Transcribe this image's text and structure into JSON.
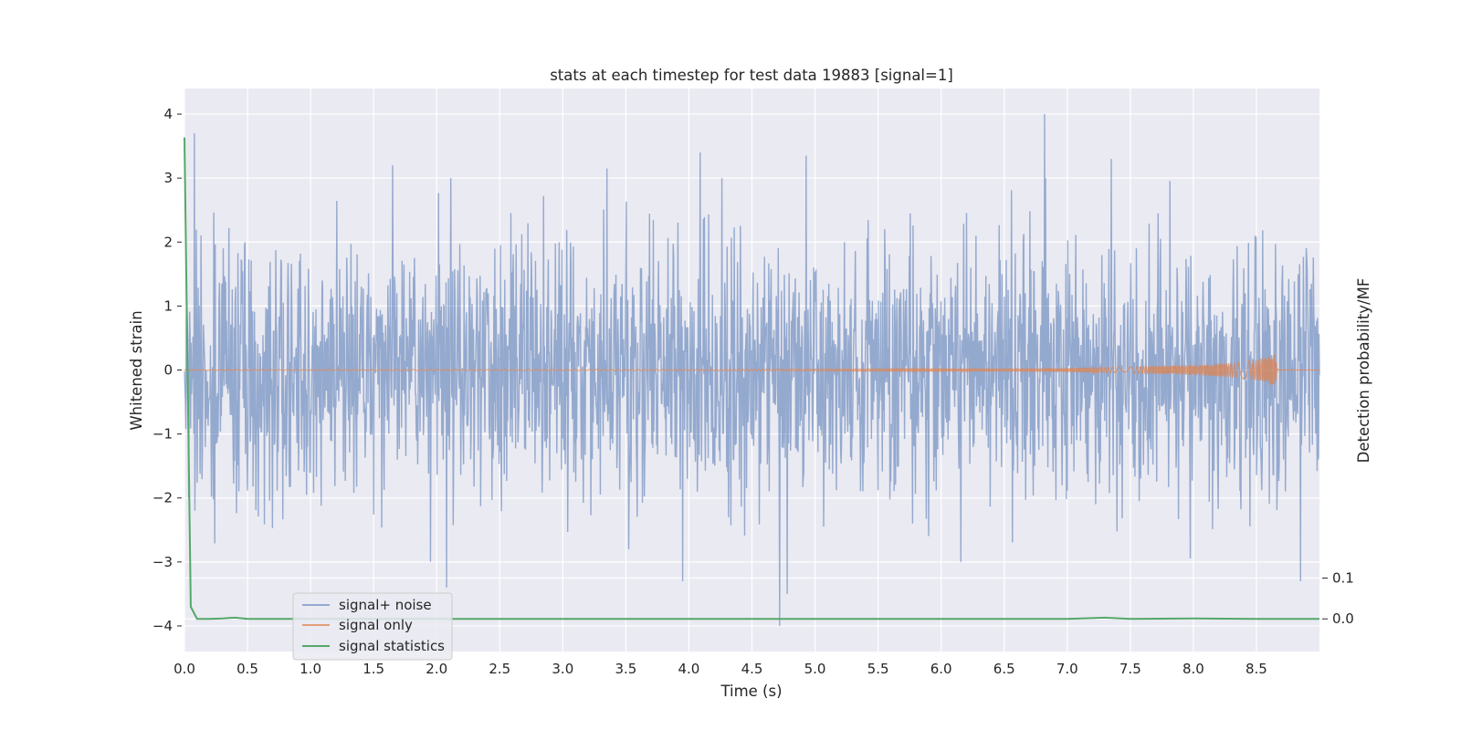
{
  "chart_data": {
    "type": "line",
    "title": "stats at each timestep for test data 19883 [signal=1]",
    "xlabel": "Time (s)",
    "ylabel": "Whitened strain",
    "ylabel_right": "Detection probability/MF",
    "xlim": [
      0.0,
      9.0
    ],
    "ylim": [
      -4.4,
      4.4
    ],
    "ylim_right": [
      -0.08,
      1.3
    ],
    "x_ticks": [
      "0.0",
      "0.5",
      "1.0",
      "1.5",
      "2.0",
      "2.5",
      "3.0",
      "3.5",
      "4.0",
      "4.5",
      "5.0",
      "5.5",
      "6.0",
      "6.5",
      "7.0",
      "7.5",
      "8.0",
      "8.5"
    ],
    "y_ticks": [
      "4",
      "3",
      "2",
      "1",
      "0",
      "−1",
      "−2",
      "−3",
      "−4"
    ],
    "y_ticks_right": [
      "0.1",
      "0.0"
    ],
    "grid": true,
    "legend_position": "lower-left",
    "series": [
      {
        "name": "signal+ noise",
        "color": "#4c72b0",
        "description": "whitened strain noise, ~Gaussian, std about 1.0, peaks near +4.0 (t≈6.8) and -4.0 (t≈4.7)",
        "peaks": [
          [
            0.08,
            3.7
          ],
          [
            1.65,
            3.2
          ],
          [
            3.35,
            3.15
          ],
          [
            4.09,
            3.4
          ],
          [
            4.93,
            3.35
          ],
          [
            6.82,
            4.0
          ],
          [
            7.35,
            3.3
          ],
          [
            4.72,
            -4.0
          ],
          [
            4.78,
            -3.5
          ],
          [
            2.08,
            -3.4
          ],
          [
            3.95,
            -3.3
          ],
          [
            8.85,
            -3.3
          ]
        ]
      },
      {
        "name": "signal only",
        "color": "#dd8452",
        "description": "chirp, amplitude grows from ~0 to ~0.25 until t≈8.65 then stops",
        "x": [
          0.0,
          4.0,
          6.0,
          7.0,
          7.5,
          8.0,
          8.3,
          8.5,
          8.6,
          8.65,
          8.67
        ],
        "envelope": [
          0.005,
          0.01,
          0.02,
          0.03,
          0.05,
          0.08,
          0.11,
          0.16,
          0.22,
          0.26,
          0.0
        ]
      },
      {
        "name": "signal statistics",
        "color": "#55a868",
        "axis": "right",
        "x": [
          0.0,
          0.05,
          0.1,
          0.2,
          0.3,
          0.4,
          0.5,
          1.0,
          2.0,
          3.0,
          4.0,
          5.0,
          6.0,
          7.0,
          7.3,
          7.5,
          8.0,
          8.5,
          9.0
        ],
        "y": [
          1.18,
          0.03,
          0.0,
          0.0,
          0.001,
          0.003,
          0.0,
          0.0,
          0.0,
          0.0,
          0.0,
          0.0,
          0.0,
          0.0,
          0.003,
          0.0,
          0.001,
          0.0,
          0.0
        ]
      }
    ],
    "background_color": "#eaeaf2",
    "grid_color": "#ffffff",
    "text_color": "#262626"
  }
}
